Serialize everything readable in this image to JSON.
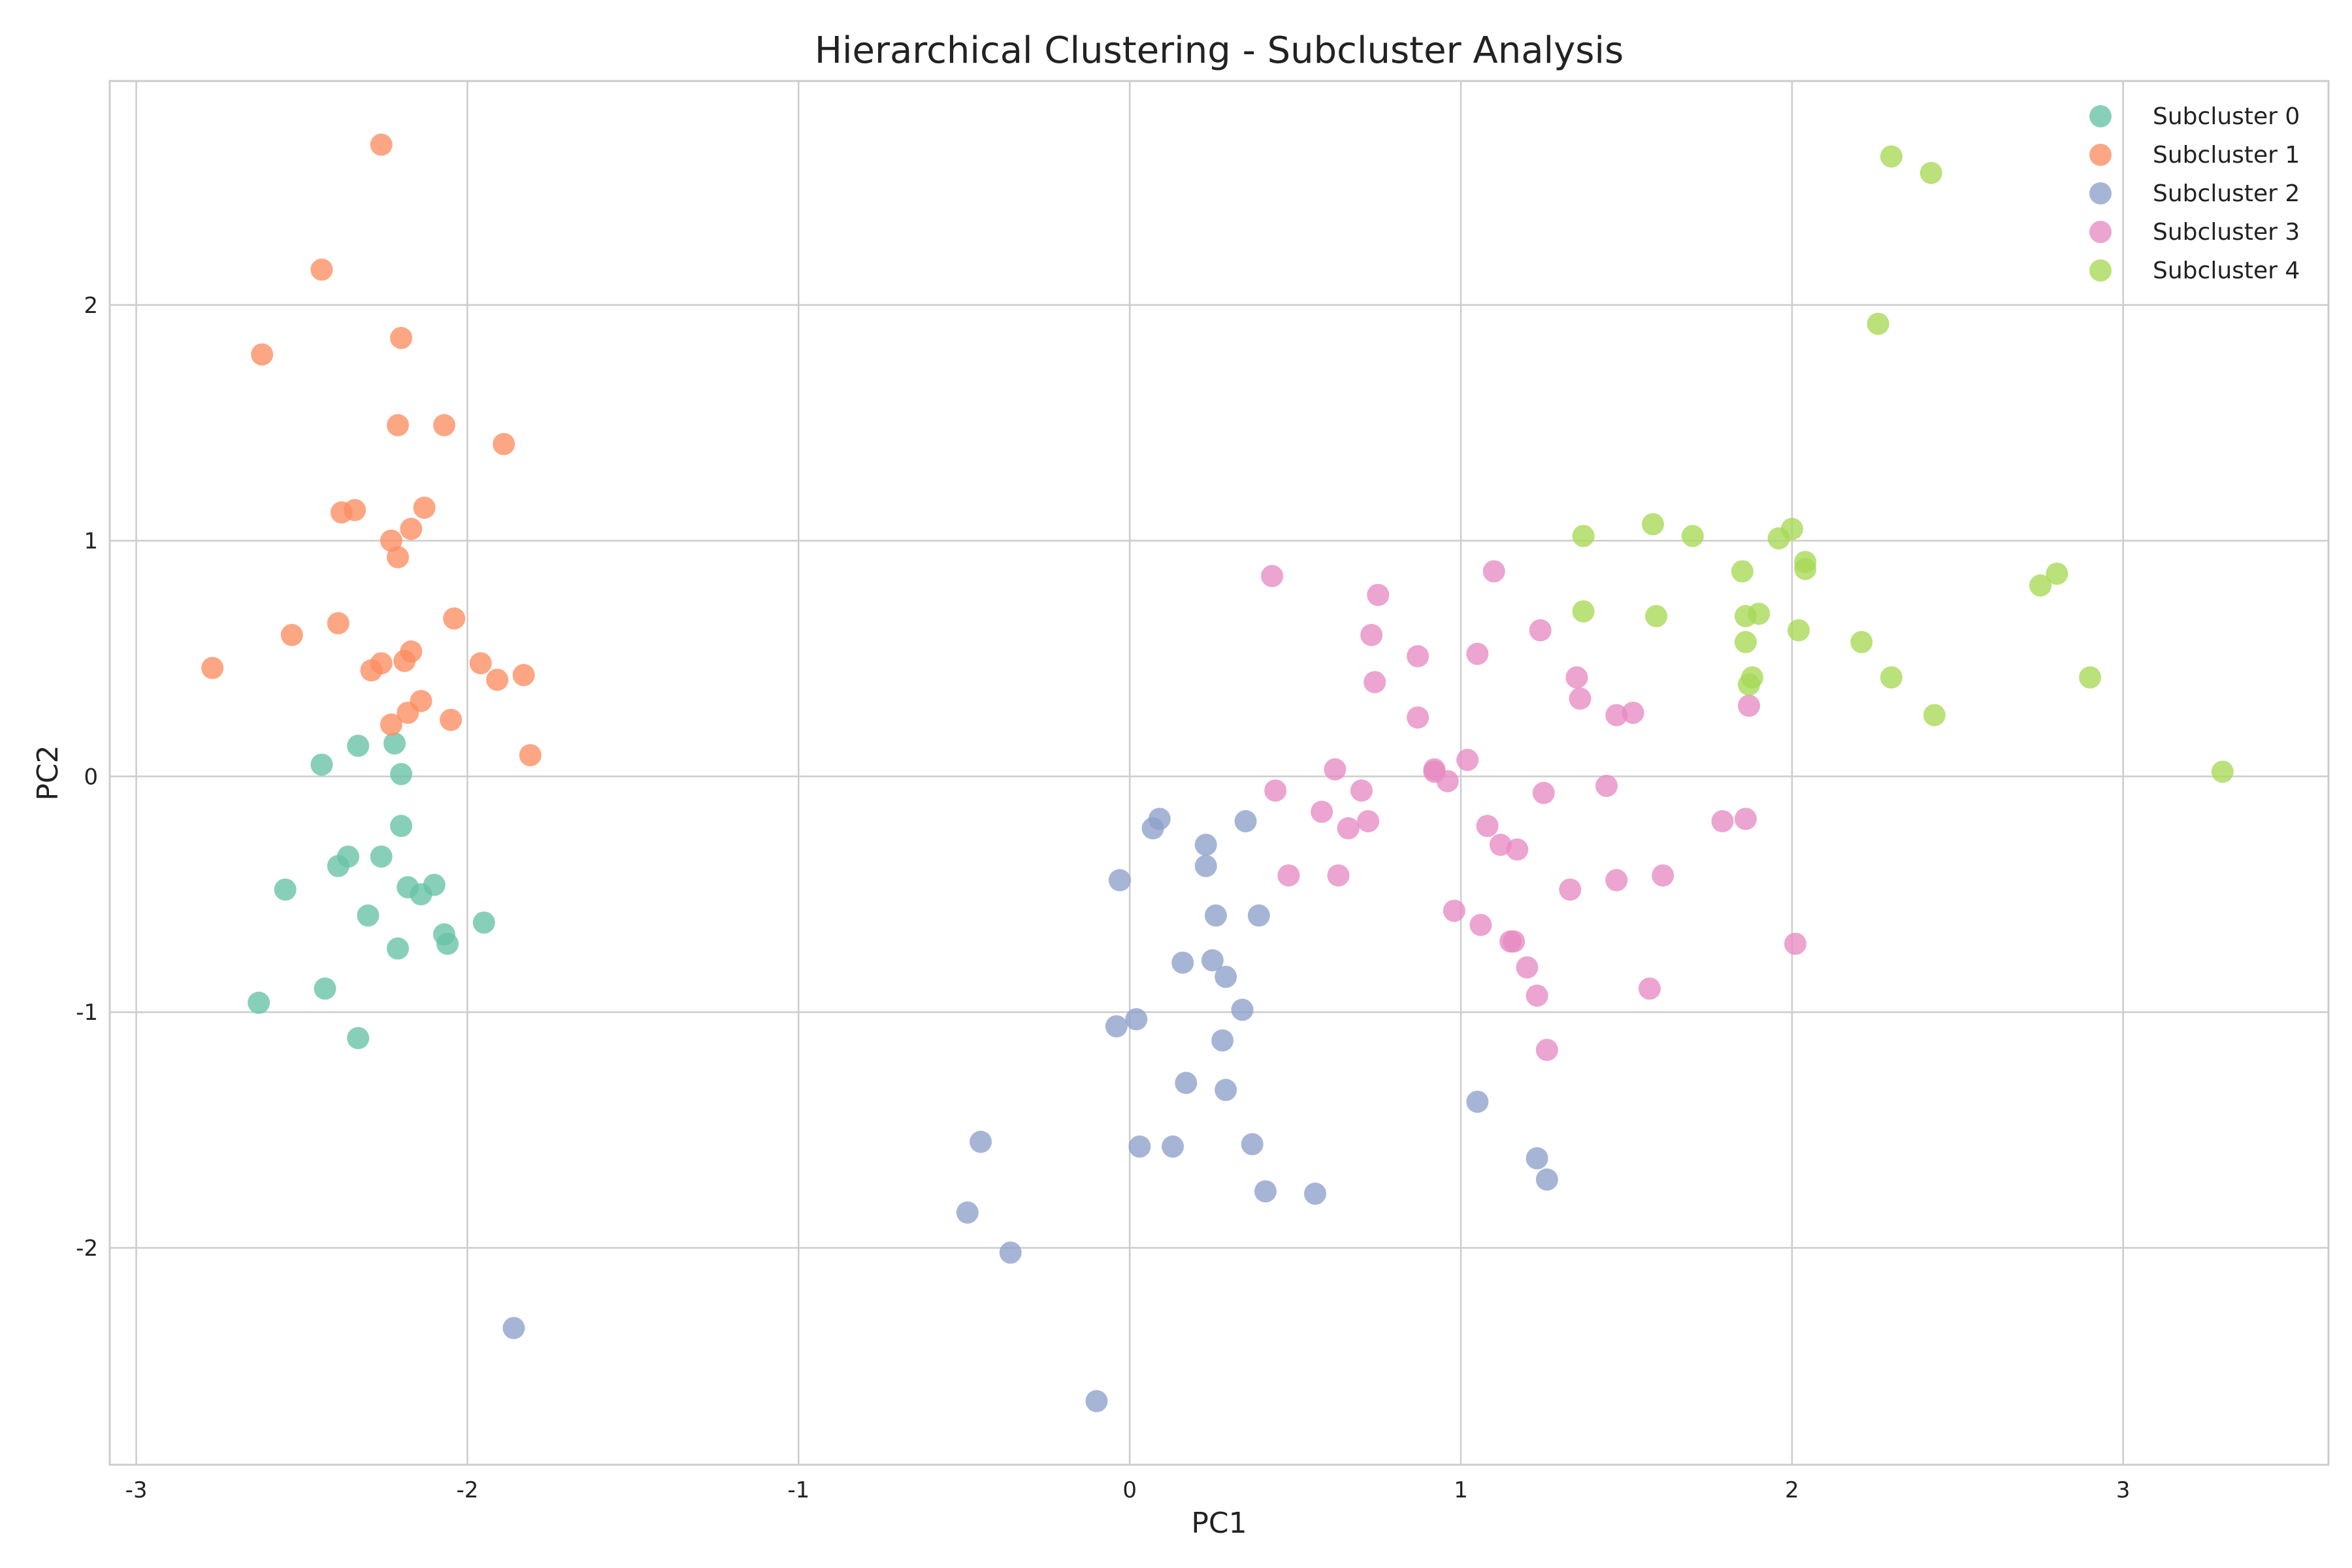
{
  "chart_data": {
    "type": "scatter",
    "title": "Hierarchical Clustering - Subcluster Analysis",
    "xlabel": "PC1",
    "ylabel": "PC2",
    "xlim": [
      -3.08,
      3.62
    ],
    "ylim": [
      -2.92,
      2.95
    ],
    "xticks": [
      -3,
      -2,
      -1,
      0,
      1,
      2,
      3
    ],
    "yticks": [
      -2,
      -1,
      0,
      1,
      2
    ],
    "grid": true,
    "legend_position": "top-right",
    "series": [
      {
        "name": "Subcluster 0",
        "color": "#66c2a5",
        "points": [
          [
            -2.44,
            0.05
          ],
          [
            -2.33,
            0.13
          ],
          [
            -2.22,
            0.14
          ],
          [
            -2.2,
            0.01
          ],
          [
            -2.2,
            -0.21
          ],
          [
            -2.26,
            -0.34
          ],
          [
            -2.36,
            -0.34
          ],
          [
            -2.39,
            -0.38
          ],
          [
            -2.55,
            -0.48
          ],
          [
            -2.18,
            -0.47
          ],
          [
            -2.14,
            -0.5
          ],
          [
            -2.1,
            -0.46
          ],
          [
            -2.3,
            -0.59
          ],
          [
            -1.95,
            -0.62
          ],
          [
            -2.07,
            -0.67
          ],
          [
            -2.06,
            -0.71
          ],
          [
            -2.21,
            -0.73
          ],
          [
            -2.43,
            -0.9
          ],
          [
            -2.63,
            -0.96
          ],
          [
            -2.33,
            -1.11
          ]
        ]
      },
      {
        "name": "Subcluster 1",
        "color": "#fc8d62",
        "points": [
          [
            -2.26,
            2.68
          ],
          [
            -2.44,
            2.15
          ],
          [
            -2.62,
            1.79
          ],
          [
            -2.2,
            1.86
          ],
          [
            -2.21,
            1.49
          ],
          [
            -2.07,
            1.49
          ],
          [
            -1.89,
            1.41
          ],
          [
            -2.38,
            1.12
          ],
          [
            -2.34,
            1.13
          ],
          [
            -2.13,
            1.14
          ],
          [
            -2.17,
            1.05
          ],
          [
            -2.23,
            1.0
          ],
          [
            -2.21,
            0.93
          ],
          [
            -2.39,
            0.65
          ],
          [
            -2.53,
            0.6
          ],
          [
            -2.04,
            0.67
          ],
          [
            -2.77,
            0.46
          ],
          [
            -2.29,
            0.45
          ],
          [
            -2.26,
            0.48
          ],
          [
            -2.19,
            0.49
          ],
          [
            -2.17,
            0.53
          ],
          [
            -1.96,
            0.48
          ],
          [
            -1.91,
            0.41
          ],
          [
            -1.83,
            0.43
          ],
          [
            -2.14,
            0.32
          ],
          [
            -2.18,
            0.27
          ],
          [
            -2.23,
            0.22
          ],
          [
            -2.05,
            0.24
          ],
          [
            -1.81,
            0.09
          ]
        ]
      },
      {
        "name": "Subcluster 2",
        "color": "#8da0cb",
        "points": [
          [
            0.09,
            -0.18
          ],
          [
            0.07,
            -0.22
          ],
          [
            0.35,
            -0.19
          ],
          [
            0.23,
            -0.29
          ],
          [
            0.23,
            -0.38
          ],
          [
            -0.03,
            -0.44
          ],
          [
            0.26,
            -0.59
          ],
          [
            0.39,
            -0.59
          ],
          [
            0.16,
            -0.79
          ],
          [
            0.25,
            -0.78
          ],
          [
            0.29,
            -0.85
          ],
          [
            0.34,
            -0.99
          ],
          [
            -0.04,
            -1.06
          ],
          [
            0.02,
            -1.03
          ],
          [
            0.28,
            -1.12
          ],
          [
            0.17,
            -1.3
          ],
          [
            0.29,
            -1.33
          ],
          [
            1.05,
            -1.38
          ],
          [
            -0.45,
            -1.55
          ],
          [
            0.03,
            -1.57
          ],
          [
            0.13,
            -1.57
          ],
          [
            0.37,
            -1.56
          ],
          [
            1.23,
            -1.62
          ],
          [
            1.26,
            -1.71
          ],
          [
            0.41,
            -1.76
          ],
          [
            0.56,
            -1.77
          ],
          [
            -0.49,
            -1.85
          ],
          [
            -0.36,
            -2.02
          ],
          [
            -1.86,
            -2.34
          ],
          [
            -0.1,
            -2.65
          ]
        ]
      },
      {
        "name": "Subcluster 3",
        "color": "#e78ac3",
        "points": [
          [
            0.43,
            0.85
          ],
          [
            1.1,
            0.87
          ],
          [
            0.75,
            0.77
          ],
          [
            0.73,
            0.6
          ],
          [
            1.24,
            0.62
          ],
          [
            0.87,
            0.51
          ],
          [
            1.05,
            0.52
          ],
          [
            1.35,
            0.42
          ],
          [
            0.74,
            0.4
          ],
          [
            1.36,
            0.33
          ],
          [
            1.47,
            0.26
          ],
          [
            1.52,
            0.27
          ],
          [
            1.87,
            0.3
          ],
          [
            0.87,
            0.25
          ],
          [
            1.02,
            0.07
          ],
          [
            0.92,
            0.02
          ],
          [
            0.92,
            0.03
          ],
          [
            0.96,
            -0.02
          ],
          [
            0.62,
            0.03
          ],
          [
            0.44,
            -0.06
          ],
          [
            0.7,
            -0.06
          ],
          [
            1.25,
            -0.07
          ],
          [
            1.44,
            -0.04
          ],
          [
            0.58,
            -0.15
          ],
          [
            0.72,
            -0.19
          ],
          [
            0.66,
            -0.22
          ],
          [
            1.08,
            -0.21
          ],
          [
            1.79,
            -0.19
          ],
          [
            1.86,
            -0.18
          ],
          [
            1.12,
            -0.29
          ],
          [
            1.17,
            -0.31
          ],
          [
            0.48,
            -0.42
          ],
          [
            0.63,
            -0.42
          ],
          [
            1.47,
            -0.44
          ],
          [
            1.61,
            -0.42
          ],
          [
            1.33,
            -0.48
          ],
          [
            0.98,
            -0.57
          ],
          [
            1.06,
            -0.63
          ],
          [
            1.16,
            -0.7
          ],
          [
            1.15,
            -0.7
          ],
          [
            2.01,
            -0.71
          ],
          [
            1.2,
            -0.81
          ],
          [
            1.57,
            -0.9
          ],
          [
            1.23,
            -0.93
          ],
          [
            1.26,
            -1.16
          ]
        ]
      },
      {
        "name": "Subcluster 4",
        "color": "#a6d854",
        "points": [
          [
            2.3,
            2.63
          ],
          [
            2.42,
            2.56
          ],
          [
            2.26,
            1.92
          ],
          [
            1.58,
            1.07
          ],
          [
            1.37,
            1.02
          ],
          [
            1.7,
            1.02
          ],
          [
            1.96,
            1.01
          ],
          [
            2.0,
            1.05
          ],
          [
            2.04,
            0.91
          ],
          [
            2.04,
            0.88
          ],
          [
            1.85,
            0.87
          ],
          [
            2.8,
            0.86
          ],
          [
            2.75,
            0.81
          ],
          [
            1.37,
            0.7
          ],
          [
            1.59,
            0.68
          ],
          [
            1.86,
            0.68
          ],
          [
            1.9,
            0.69
          ],
          [
            2.02,
            0.62
          ],
          [
            1.86,
            0.57
          ],
          [
            2.21,
            0.57
          ],
          [
            1.88,
            0.42
          ],
          [
            1.87,
            0.39
          ],
          [
            2.3,
            0.42
          ],
          [
            2.9,
            0.42
          ],
          [
            2.43,
            0.26
          ],
          [
            3.3,
            0.02
          ]
        ]
      }
    ]
  }
}
